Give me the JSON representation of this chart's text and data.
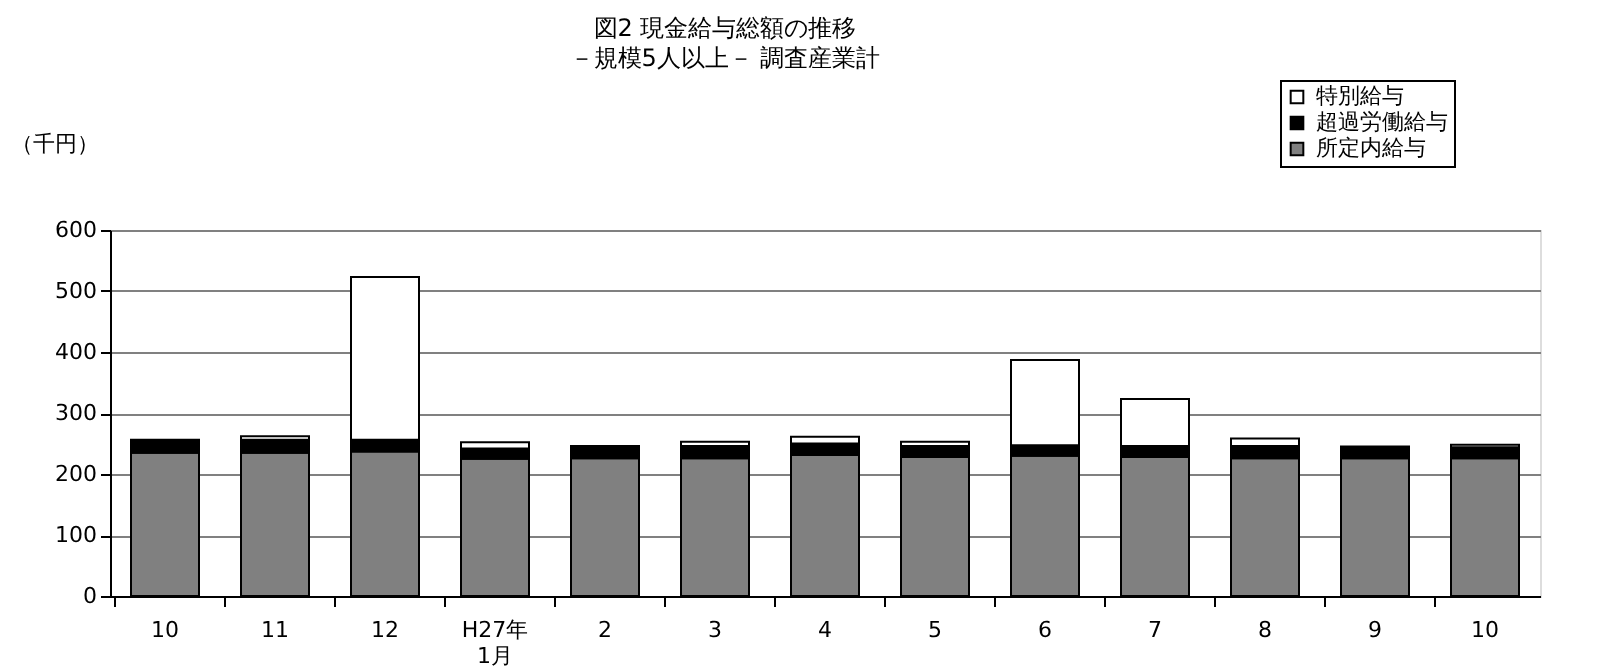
{
  "chart_data": {
    "type": "bar",
    "stacked": true,
    "title": "図2  現金給与総額の推移",
    "subtitle": "－規模5人以上－  調査産業計",
    "ylabel": "（千円）",
    "categories": [
      "10",
      "11",
      "12",
      "H27年\n1月",
      "2",
      "3",
      "4",
      "5",
      "6",
      "7",
      "8",
      "9",
      "10"
    ],
    "series": [
      {
        "name": "所定内給与",
        "color": "#808080",
        "values": [
          235,
          235,
          237,
          225,
          226,
          226,
          231,
          228,
          230,
          228,
          226,
          226,
          226
        ]
      },
      {
        "name": "超過労働給与",
        "color": "#000000",
        "values": [
          21,
          21,
          19,
          17,
          20,
          20,
          19,
          18,
          17,
          18,
          20,
          19,
          18
        ]
      },
      {
        "name": "特別給与",
        "color": "#ffffff",
        "values": [
          null,
          6,
          267,
          10,
          null,
          7,
          11,
          7,
          140,
          77,
          12,
          null,
          4
        ]
      }
    ],
    "ylim": [
      0,
      600
    ],
    "yticks": [
      0,
      100,
      200,
      300,
      400,
      500,
      600
    ],
    "grid": "y",
    "legend": "top right"
  }
}
